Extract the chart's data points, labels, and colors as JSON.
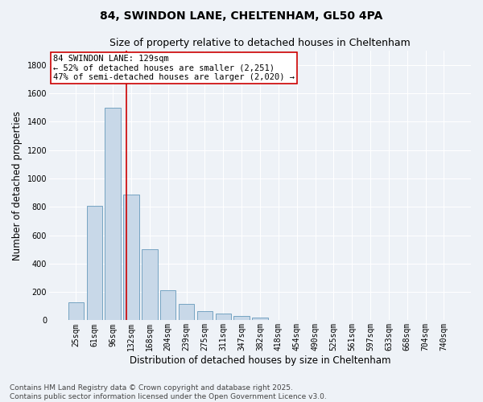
{
  "title_line1": "84, SWINDON LANE, CHELTENHAM, GL50 4PA",
  "title_line2": "Size of property relative to detached houses in Cheltenham",
  "xlabel": "Distribution of detached houses by size in Cheltenham",
  "ylabel": "Number of detached properties",
  "categories": [
    "25sqm",
    "61sqm",
    "96sqm",
    "132sqm",
    "168sqm",
    "204sqm",
    "239sqm",
    "275sqm",
    "311sqm",
    "347sqm",
    "382sqm",
    "418sqm",
    "454sqm",
    "490sqm",
    "525sqm",
    "561sqm",
    "597sqm",
    "633sqm",
    "668sqm",
    "704sqm",
    "740sqm"
  ],
  "bar_heights": [
    125,
    805,
    1500,
    885,
    500,
    210,
    115,
    65,
    45,
    30,
    20,
    0,
    0,
    0,
    0,
    0,
    0,
    0,
    0,
    0,
    0
  ],
  "bar_color": "#c8d8e8",
  "bar_edge_color": "#6699bb",
  "vline_x_data": 2.72,
  "vline_color": "#cc0000",
  "annotation_text": "84 SWINDON LANE: 129sqm\n← 52% of detached houses are smaller (2,251)\n47% of semi-detached houses are larger (2,020) →",
  "annotation_box_color": "#ffffff",
  "annotation_box_edge": "#cc0000",
  "ylim": [
    0,
    1900
  ],
  "yticks": [
    0,
    200,
    400,
    600,
    800,
    1000,
    1200,
    1400,
    1600,
    1800
  ],
  "footer_line1": "Contains HM Land Registry data © Crown copyright and database right 2025.",
  "footer_line2": "Contains public sector information licensed under the Open Government Licence v3.0.",
  "background_color": "#eef2f7",
  "plot_background_color": "#eef2f7",
  "grid_color": "#ffffff",
  "title_fontsize": 10,
  "subtitle_fontsize": 9,
  "axis_label_fontsize": 8.5,
  "tick_fontsize": 7,
  "footer_fontsize": 6.5,
  "annotation_fontsize": 7.5
}
